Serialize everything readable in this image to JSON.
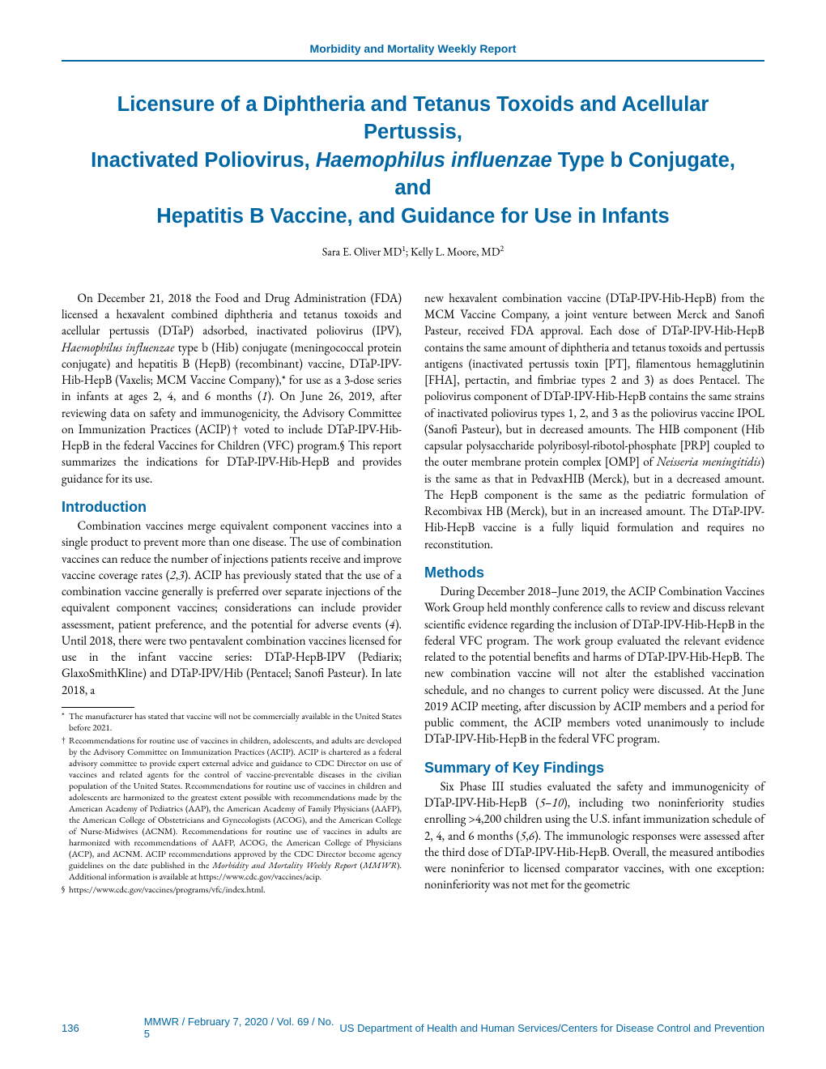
{
  "header": "Morbidity and Mortality Weekly Report",
  "title_line1": "Licensure of a Diphtheria and Tetanus Toxoids and Acellular Pertussis,",
  "title_line2_pre": "Inactivated Poliovirus, ",
  "title_line2_italic": "Haemophilus influenzae",
  "title_line2_post": " Type b Conjugate, and",
  "title_line3": "Hepatitis B Vaccine, and Guidance for Use in Infants",
  "author_text": "Sara E. Oliver MD",
  "author_sup1": "1",
  "author_sep": "; Kelly L. Moore, MD",
  "author_sup2": "2",
  "para1_pre": "On December 21, 2018 the Food and Drug Administration (FDA) licensed a hexavalent combined diphtheria and tetanus toxoids and acellular pertussis (DTaP) adsorbed, inactivated poliovirus (IPV), ",
  "para1_italic1": "Haemophilus influenzae",
  "para1_mid": " type b (Hib) conjugate (meningococcal protein conjugate) and hepatitis B (HepB) (recombinant) vaccine, DTaP-IPV-Hib-HepB (Vaxelis; MCM Vaccine Company),* for use as a 3-dose series in infants at ages 2, 4, and 6 months (",
  "para1_ref1": "1",
  "para1_post": "). On June 26, 2019, after reviewing data on safety and immunogenicity, the Advisory Committee on Immunization Practices (ACIP)† voted to include DTaP-IPV-Hib-HepB in the federal Vaccines for Children (VFC) program.§ This report summarizes the indications for DTaP-IPV-Hib-HepB and provides guidance for its use.",
  "heading_intro": "Introduction",
  "intro_para_pre": "Combination vaccines merge equivalent component vaccines into a single product to prevent more than one disease. The use of combination vaccines can reduce the number of injections patients receive and improve vaccine coverage rates (",
  "intro_ref1": "2",
  "intro_comma": ",",
  "intro_ref2": "3",
  "intro_mid": "). ACIP has previously stated that the use of a combination vaccine generally is preferred over separate injections of the equivalent component vaccines; considerations can include provider assessment, patient preference, and the potential for adverse events (",
  "intro_ref3": "4",
  "intro_post": "). Until 2018, there were two pentavalent combination vaccines licensed for use in the infant vaccine series: DTaP-HepB-IPV (Pediarix; GlaxoSmithKline) and DTaP-IPV/Hib (Pentacel; Sanofi Pasteur). In late 2018, a",
  "fn1_mark": "*",
  "fn1_text": "The manufacturer has stated that vaccine will not be commercially available in the United States before 2021.",
  "fn2_mark": "†",
  "fn2_text_pre": "Recommendations for routine use of vaccines in children, adolescents, and adults are developed by the Advisory Committee on Immunization Practices (ACIP). ACIP is chartered as a federal advisory committee to provide expert external advice and guidance to CDC Director on use of vaccines and related agents for the control of vaccine-preventable diseases in the civilian population of the United States. Recommendations for routine use of vaccines in children and adolescents are harmonized to the greatest extent possible with recommendations made by the American Academy of Pediatrics (AAP), the American Academy of Family Physicians (AAFP), the American College of Obstetricians and Gynecologists (ACOG), and the American College of Nurse-Midwives (ACNM). Recommendations for routine use of vaccines in adults are harmonized with recommendations of AAFP, ACOG, the American College of Physicians (ACP), and ACNM. ACIP recommendations approved by the CDC Director become agency guidelines on the date published in the ",
  "fn2_italic": "Morbidity and Mortality Weekly Report",
  "fn2_text_mid": " (",
  "fn2_italic2": "MMWR",
  "fn2_text_post": "). Additional information is available at https://www.cdc.gov/vaccines/acip.",
  "fn3_mark": "§",
  "fn3_text": "https://www.cdc.gov/vaccines/programs/vfc/index.html.",
  "col2_pre": "new hexavalent combination vaccine (DTaP-IPV-Hib-HepB) from the MCM Vaccine Company, a joint venture between Merck and Sanofi Pasteur, received FDA approval. Each dose of DTaP-IPV-Hib-HepB contains the same amount of diphtheria and tetanus toxoids and pertussis antigens (inactivated pertussis toxin [PT], filamentous hemagglutinin [FHA], pertactin, and fimbriae types 2 and 3) as does Pentacel. The poliovirus component of DTaP-IPV-Hib-HepB contains the same strains of inactivated poliovirus types 1, 2, and 3 as the poliovirus vaccine IPOL (Sanofi Pasteur), but in decreased amounts. The HIB component (Hib capsular polysaccharide polyribosyl-ribotol-phosphate [PRP] coupled to the outer membrane protein complex [OMP] of ",
  "col2_italic": "Neisseria meningitidis",
  "col2_post": ") is the same as that in PedvaxHIB (Merck), but in a decreased amount. The HepB component is the same as the pediatric formulation of Recombivax HB (Merck), but in an increased amount. The DTaP-IPV-Hib-HepB vaccine is a fully liquid formulation and requires no reconstitution.",
  "heading_methods": "Methods",
  "methods_para": "During December 2018–June 2019, the ACIP Combination Vaccines Work Group held monthly conference calls to review and discuss relevant scientific evidence regarding the inclusion of DTaP-IPV-Hib-HepB in the federal VFC program. The work group evaluated the relevant evidence related to the potential benefits and harms of DTaP-IPV-Hib-HepB. The new combination vaccine will not alter the established vaccination schedule, and no changes to current policy were discussed. At the June 2019 ACIP meeting, after discussion by ACIP members and a period for public comment, the ACIP members voted unanimously to include DTaP-IPV-Hib-HepB in the federal VFC program.",
  "heading_summary": "Summary of Key Findings",
  "summary_pre": "Six Phase III studies evaluated the safety and immunogenicity of DTaP-IPV-Hib-HepB (",
  "summary_ref1": "5",
  "summary_dash": "–",
  "summary_ref2": "10",
  "summary_mid": "), including two noninferiority studies enrolling >4,200 children using the U.S. infant immunization schedule of 2, 4, and 6 months (",
  "summary_ref3": "5",
  "summary_comma": ",",
  "summary_ref4": "6",
  "summary_post": "). The immunologic responses were assessed after the third dose of DTaP-IPV-Hib-HepB. Overall, the measured antibodies were noninferior to licensed comparator vaccines, with one exception: noninferiority was not met for the geometric",
  "footer": {
    "page": "136",
    "center": "MMWR  /  February 7, 2020  /  Vol. 69  /  No. 5",
    "right": "US Department of Health and Human Services/Centers for Disease Control and Prevention"
  }
}
